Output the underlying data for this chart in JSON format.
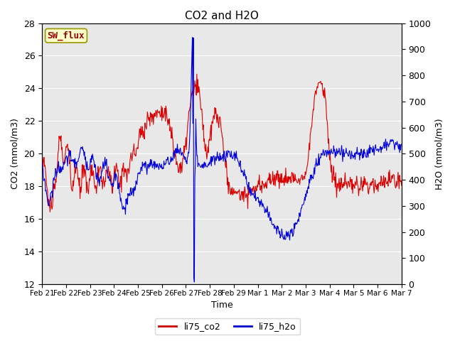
{
  "title": "CO2 and H2O",
  "xlabel": "Time",
  "ylabel_left": "CO2 (mmol/m3)",
  "ylabel_right": "H2O (mmol/m3)",
  "ylim_left": [
    12,
    28
  ],
  "ylim_right": [
    0,
    1000
  ],
  "yticks_left": [
    12,
    14,
    16,
    18,
    20,
    22,
    24,
    26,
    28
  ],
  "yticks_right": [
    0,
    100,
    200,
    300,
    400,
    500,
    600,
    700,
    800,
    900,
    1000
  ],
  "xtick_labels": [
    "Feb 21",
    "Feb 22",
    "Feb 23",
    "Feb 24",
    "Feb 25",
    "Feb 26",
    "Feb 27",
    "Feb 28",
    "Feb 29",
    "Mar 1",
    "Mar 2",
    "Mar 3",
    "Mar 4",
    "Mar 5",
    "Mar 6",
    "Mar 7"
  ],
  "legend_labels": [
    "li75_co2",
    "li75_h2o"
  ],
  "legend_colors": [
    "#cc0000",
    "#0000cc"
  ],
  "sw_flux_label": "SW_flux",
  "sw_flux_bg": "#ffffcc",
  "sw_flux_edge": "#999900",
  "sw_flux_text_color": "#990000",
  "plot_bg": "#e8e8e8",
  "fig_bg": "#ffffff",
  "line_color_co2": "#dd0000",
  "line_color_h2o": "#0000dd",
  "line_width": 0.8
}
